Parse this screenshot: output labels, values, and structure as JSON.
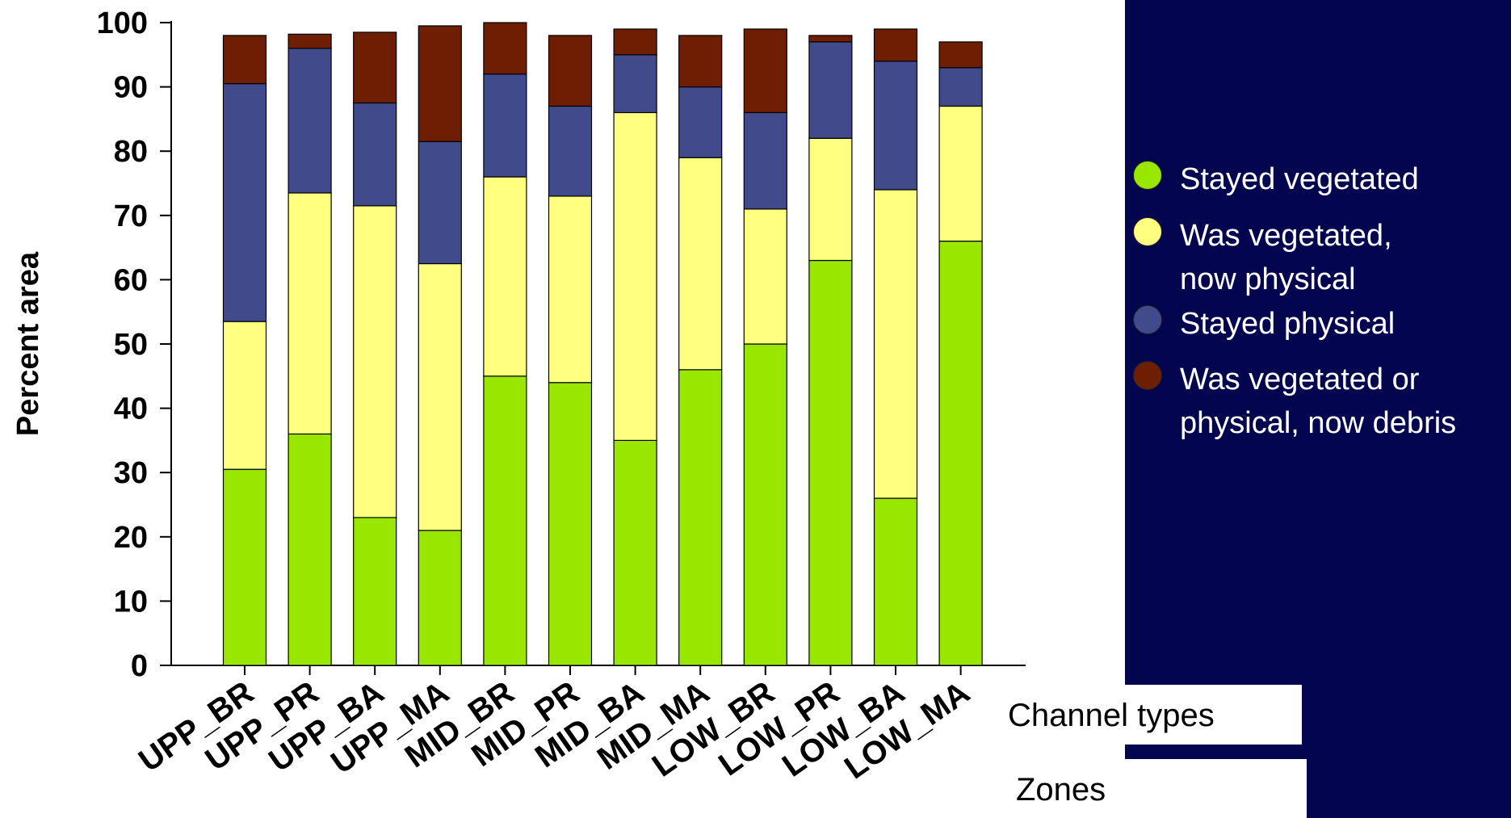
{
  "chart_data": {
    "type": "bar",
    "stacked": true,
    "categories": [
      "UPP_BR",
      "UPP_PR",
      "UPP_BA",
      "UPP_MA",
      "MID_BR",
      "MID_PR",
      "MID_BA",
      "MID_MA",
      "LOW_BR",
      "LOW_PR",
      "LOW_BA",
      "LOW_MA"
    ],
    "series": [
      {
        "name": "Stayed vegetated",
        "color": "#99e600",
        "values": [
          30.5,
          36,
          23,
          21,
          45,
          44,
          35,
          46,
          50,
          63,
          26,
          66
        ]
      },
      {
        "name": "Was vegetated,\nnow physical",
        "color": "#ffff80",
        "values": [
          23,
          37.5,
          48.5,
          41.5,
          31,
          29,
          51,
          33,
          21,
          19,
          48,
          21
        ]
      },
      {
        "name": "Stayed physical",
        "color": "#414b8c",
        "values": [
          37,
          22.5,
          16,
          19,
          16,
          14,
          9,
          11,
          15,
          15,
          20,
          6
        ]
      },
      {
        "name": "Was vegetated or\nphysical, now debris",
        "color": "#6e1e03",
        "values": [
          7.5,
          2.2,
          11,
          18,
          8,
          11,
          4,
          8,
          13,
          1,
          5,
          4
        ]
      }
    ],
    "ylabel": "Percent area",
    "xlabel": "",
    "ylim": [
      0,
      100
    ],
    "yticks": [
      0,
      10,
      20,
      30,
      40,
      50,
      60,
      70,
      80,
      90,
      100
    ],
    "grid": false,
    "legend_position": "right",
    "annotations": [
      "Channel types",
      "Zones"
    ]
  },
  "legend_bg": "#03064f"
}
